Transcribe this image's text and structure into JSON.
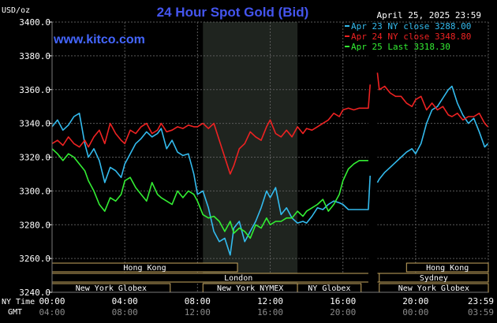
{
  "chart_data": {
    "type": "line",
    "title": "24 Hour Spot Gold (Bid)",
    "date_label": "April 25, 2025 23:59",
    "watermark": "www.kitco.com",
    "y_unit": "USD/oz",
    "ylim": [
      3240,
      3400
    ],
    "y_ticks": [
      "3400.0",
      "3380.0",
      "3360.0",
      "3340.0",
      "3320.0",
      "3300.0",
      "3280.0",
      "3260.0",
      "3240.0"
    ],
    "x_ticks_ny": [
      "00:00",
      "04:00",
      "08:00",
      "12:00",
      "16:00",
      "20:00",
      "23:59"
    ],
    "x_ticks_gmt": [
      "04:00",
      "08:00",
      "12:00",
      "16:00",
      "20:00",
      "00:00",
      "03:59"
    ],
    "x_row_labels": [
      "NY Time",
      "GMT"
    ],
    "legend": [
      {
        "label": "Apr 23 NY close 3288.00",
        "color": "#33bbee"
      },
      {
        "label": "Apr 24 NY close 3348.80",
        "color": "#ee2222"
      },
      {
        "label": "Apr 25 Last 3318.30",
        "color": "#33ee33"
      }
    ],
    "series": [
      {
        "name": "Apr 23",
        "color": "#33bbee",
        "x": [
          0,
          0.3,
          0.6,
          0.9,
          1.2,
          1.5,
          1.8,
          2.0,
          2.3,
          2.6,
          2.9,
          3.2,
          3.5,
          3.8,
          4.0,
          4.3,
          4.6,
          4.9,
          5.2,
          5.5,
          5.8,
          6.0,
          6.3,
          6.6,
          6.9,
          7.2,
          7.5,
          7.8,
          8.0,
          8.3,
          8.6,
          8.9,
          9.2,
          9.5,
          9.8,
          10.0,
          10.3,
          10.6,
          10.9,
          11.2,
          11.5,
          11.8,
          12.0,
          12.3,
          12.6,
          12.9,
          13.2,
          13.5,
          13.8,
          14.0,
          14.3,
          14.6,
          14.9,
          15.2,
          15.5,
          15.8,
          16.0,
          16.3,
          16.6,
          16.9,
          17.2,
          17.4,
          17.5,
          17.9,
          18.0,
          18.3,
          18.6,
          18.9,
          19.2,
          19.5,
          19.8,
          20.0,
          20.3,
          20.6,
          20.9,
          21.2,
          21.5,
          21.8,
          22.0,
          22.3,
          22.6,
          22.9,
          23.2,
          23.5,
          23.8,
          23.98
        ],
        "values": [
          3338,
          3342,
          3336,
          3339,
          3344,
          3346,
          3328,
          3320,
          3325,
          3318,
          3305,
          3314,
          3312,
          3308,
          3316,
          3322,
          3328,
          3331,
          3335,
          3332,
          3334,
          3337,
          3325,
          3330,
          3323,
          3321,
          3322,
          3310,
          3298,
          3300,
          3290,
          3276,
          3270,
          3272,
          3262,
          3278,
          3282,
          3270,
          3276,
          3282,
          3290,
          3300,
          3296,
          3302,
          3286,
          3290,
          3284,
          3281,
          3282,
          3281,
          3285,
          3290,
          3289,
          3292,
          3294,
          3293,
          3292,
          3289,
          3289,
          3289,
          3289,
          3289,
          3309,
          3305,
          3307,
          3311,
          3314,
          3317,
          3320,
          3323,
          3325,
          3322,
          3328,
          3340,
          3348,
          3350,
          3355,
          3360,
          3362,
          3352,
          3345,
          3340,
          3343,
          3335,
          3326,
          3328
        ]
      },
      {
        "name": "Apr 24",
        "color": "#ee2222",
        "x": [
          0,
          0.3,
          0.6,
          0.9,
          1.2,
          1.5,
          1.8,
          2.0,
          2.3,
          2.6,
          2.9,
          3.2,
          3.5,
          3.8,
          4.0,
          4.3,
          4.6,
          4.9,
          5.2,
          5.5,
          5.8,
          6.0,
          6.3,
          6.6,
          6.9,
          7.2,
          7.5,
          7.8,
          8.0,
          8.3,
          8.6,
          8.9,
          9.2,
          9.5,
          9.8,
          10.0,
          10.3,
          10.6,
          10.9,
          11.2,
          11.5,
          11.8,
          12.0,
          12.3,
          12.6,
          12.9,
          13.2,
          13.5,
          13.8,
          14.0,
          14.3,
          14.6,
          14.9,
          15.2,
          15.5,
          15.8,
          16.0,
          16.3,
          16.6,
          16.9,
          17.2,
          17.4,
          17.5,
          17.9,
          18.0,
          18.3,
          18.6,
          18.9,
          19.2,
          19.5,
          19.8,
          20.0,
          20.3,
          20.6,
          20.9,
          21.2,
          21.5,
          21.8,
          22.0,
          22.3,
          22.6,
          22.9,
          23.2,
          23.5,
          23.8,
          23.98
        ],
        "values": [
          3328,
          3330,
          3327,
          3332,
          3328,
          3326,
          3330,
          3326,
          3332,
          3336,
          3328,
          3340,
          3334,
          3330,
          3328,
          3336,
          3334,
          3338,
          3340,
          3334,
          3336,
          3340,
          3335,
          3336,
          3338,
          3337,
          3339,
          3338,
          3338,
          3340,
          3337,
          3340,
          3330,
          3320,
          3310,
          3315,
          3325,
          3328,
          3335,
          3332,
          3330,
          3338,
          3342,
          3334,
          3332,
          3336,
          3332,
          3338,
          3334,
          3337,
          3336,
          3338,
          3340,
          3342,
          3346,
          3344,
          3348,
          3349,
          3348,
          3349,
          3349,
          3349,
          3363,
          3370,
          3360,
          3362,
          3358,
          3356,
          3356,
          3352,
          3350,
          3354,
          3356,
          3348,
          3352,
          3348,
          3350,
          3345,
          3344,
          3346,
          3342,
          3344,
          3344,
          3346,
          3340,
          3338
        ]
      },
      {
        "name": "Apr 25",
        "color": "#33ee33",
        "x": [
          0,
          0.3,
          0.6,
          0.9,
          1.2,
          1.5,
          1.8,
          2.0,
          2.3,
          2.6,
          2.9,
          3.2,
          3.5,
          3.8,
          4.0,
          4.3,
          4.6,
          4.9,
          5.2,
          5.5,
          5.8,
          6.0,
          6.3,
          6.6,
          6.9,
          7.2,
          7.5,
          7.8,
          8.0,
          8.3,
          8.6,
          8.9,
          9.2,
          9.5,
          9.8,
          10.0,
          10.3,
          10.6,
          10.9,
          11.2,
          11.5,
          11.8,
          12.0,
          12.3,
          12.6,
          12.9,
          13.2,
          13.5,
          13.8,
          14.0,
          14.3,
          14.6,
          14.9,
          15.2,
          15.5,
          15.8,
          16.0,
          16.3,
          16.6,
          16.9,
          17.2,
          17.4
        ],
        "values": [
          3325,
          3322,
          3318,
          3322,
          3320,
          3316,
          3312,
          3306,
          3300,
          3292,
          3288,
          3296,
          3294,
          3298,
          3306,
          3308,
          3302,
          3298,
          3294,
          3305,
          3298,
          3296,
          3294,
          3292,
          3300,
          3296,
          3300,
          3298,
          3294,
          3286,
          3284,
          3285,
          3282,
          3276,
          3282,
          3275,
          3278,
          3276,
          3272,
          3280,
          3278,
          3284,
          3280,
          3282,
          3282,
          3284,
          3284,
          3288,
          3285,
          3288,
          3290,
          3292,
          3295,
          3288,
          3292,
          3298,
          3306,
          3313,
          3316,
          3318,
          3318,
          3318
        ]
      }
    ],
    "sessions": [
      {
        "label": "Hong Kong",
        "start": 0,
        "end": 10.2,
        "row": 0
      },
      {
        "label": "London",
        "start": 0,
        "end": 20.5,
        "row": 1
      },
      {
        "label": "New York Globex",
        "start": 0,
        "end": 6.5,
        "row": 2
      },
      {
        "label": "New York NYMEX",
        "start": 8.3,
        "end": 13.5,
        "row": 2
      },
      {
        "label": "NY Globex",
        "start": 13.5,
        "end": 17.0,
        "row": 2
      },
      {
        "label": "Hong Kong",
        "start": 19.5,
        "end": 24,
        "row": 0
      },
      {
        "label": "Sydney",
        "start": 18.0,
        "end": 24,
        "row": 1
      },
      {
        "label": "New York Globex",
        "start": 18.0,
        "end": 24,
        "row": 2
      }
    ],
    "highlight": {
      "start": 8.3,
      "end": 13.5
    },
    "gap": {
      "start": 17.4,
      "end": 17.9
    },
    "grid": true
  }
}
